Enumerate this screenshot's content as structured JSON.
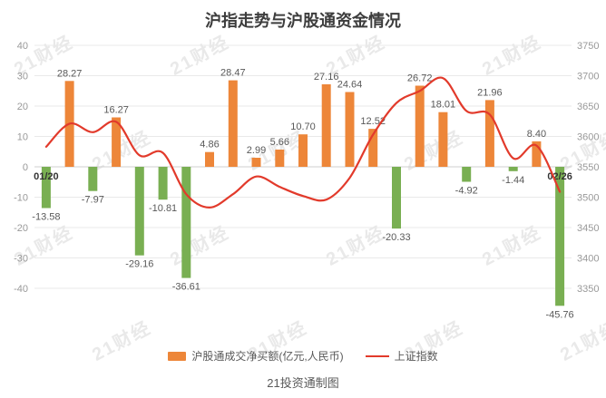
{
  "title": "沪指走势与沪股通资金情况",
  "caption": "21投资通制图",
  "watermark": "21财经",
  "colors": {
    "positive_bar": "#ED8639",
    "negative_bar": "#79AF52",
    "line": "#E23A2B",
    "grid": "#E9E9E9",
    "zero_line": "#CFCFCF",
    "axis_text": "#999999",
    "value_label": "#595959",
    "x_label": "#333333",
    "title_text": "#3D3D3D",
    "watermark_text": "#D8D8D8"
  },
  "legend": {
    "bar_label": "沪股通成交净买额(亿元,人民币)",
    "line_label": "上证指数"
  },
  "chart_data": {
    "type": "bar+line",
    "x_labels": {
      "first": "01/20",
      "last": "02/26"
    },
    "left_axis": {
      "min": -40,
      "max": 40,
      "step": 10,
      "ticks": [
        "40",
        "30",
        "20",
        "10",
        "0",
        "-10",
        "-20",
        "-30",
        "-40"
      ]
    },
    "right_axis": {
      "min": 3350,
      "max": 3750,
      "step": 50,
      "ticks": [
        "3750",
        "3700",
        "3650",
        "3600",
        "3550",
        "3500",
        "3450",
        "3400",
        "3350"
      ]
    },
    "bar_series": {
      "name": "沪股通成交净买额(亿元,人民币)",
      "labels": [
        "-13.58",
        "28.27",
        "-7.97",
        "16.27",
        "-29.16",
        "-10.81",
        "-36.61",
        "4.86",
        "28.47",
        "2.99",
        "5.66",
        "10.70",
        "27.16",
        "24.64",
        "12.52",
        "-20.33",
        "26.72",
        "18.01",
        "-4.92",
        "21.96",
        "-1.44",
        "8.40",
        "-45.76"
      ],
      "values": [
        -13.58,
        28.27,
        -7.97,
        16.27,
        -29.16,
        -10.81,
        -36.61,
        4.86,
        28.47,
        2.99,
        5.66,
        10.7,
        27.16,
        24.64,
        12.52,
        -20.33,
        26.72,
        18.01,
        -4.92,
        21.96,
        -1.44,
        8.4,
        -45.76
      ]
    },
    "line_series": {
      "name": "上证指数",
      "values": [
        3583,
        3621,
        3607,
        3624,
        3569,
        3573,
        3505,
        3483,
        3505,
        3534,
        3517,
        3502,
        3496,
        3532,
        3603,
        3655,
        3675,
        3696,
        3642,
        3636,
        3564,
        3585,
        3509
      ]
    }
  }
}
